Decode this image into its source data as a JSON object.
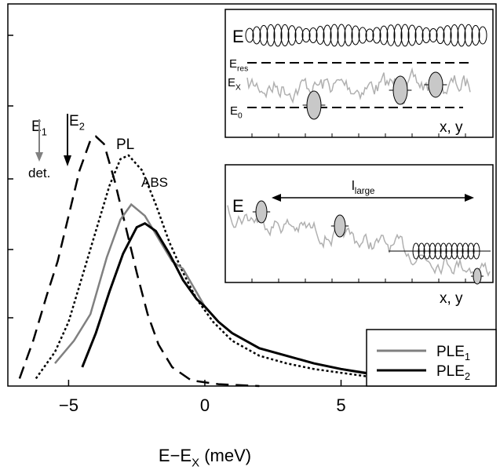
{
  "chart_data": {
    "type": "line",
    "xlabel": {
      "text": "E−E",
      "sub": "X",
      "after": " (meV)"
    },
    "xlim": [
      -7.23,
      10.69
    ],
    "ylim": [
      0,
      1
    ],
    "xticks": [
      {
        "value": -5,
        "label": "−5"
      },
      0,
      5
    ],
    "series": [
      {
        "name": "PL",
        "color": "#000000",
        "dash": "dashed",
        "x": [
          -6.8,
          -6.3,
          -5.8,
          -5.4,
          -5.0,
          -4.6,
          -4.2,
          -4.0,
          -3.7,
          -3.3,
          -2.9,
          -2.5,
          -2.1,
          -1.7,
          -1.2,
          -0.5,
          0.5,
          2
        ],
        "values": [
          0.02,
          0.12,
          0.24,
          0.33,
          0.45,
          0.57,
          0.65,
          0.66,
          0.64,
          0.54,
          0.42,
          0.3,
          0.19,
          0.11,
          0.05,
          0.015,
          0.005,
          0
        ]
      },
      {
        "name": "ABS",
        "color": "#000000",
        "dash": "dotted",
        "x": [
          -6.2,
          -5.5,
          -5,
          -4.5,
          -4,
          -3.5,
          -3.1,
          -2.8,
          -2.3,
          -1.8,
          -1.3,
          -0.8,
          -0.3,
          0.3,
          1,
          2,
          3,
          4,
          5,
          6
        ],
        "values": [
          0.02,
          0.09,
          0.17,
          0.29,
          0.41,
          0.53,
          0.6,
          0.61,
          0.57,
          0.48,
          0.38,
          0.3,
          0.23,
          0.17,
          0.12,
          0.08,
          0.06,
          0.045,
          0.035,
          0.025
        ]
      },
      {
        "name": "PLE",
        "name_sub": "1",
        "color": "#808080",
        "dash": "solid",
        "x": [
          -5.5,
          -4.8,
          -4.2,
          -3.6,
          -3.1,
          -2.7,
          -2.2,
          -1.7,
          -1.2,
          -0.8,
          -0.4,
          0,
          0.5,
          1,
          2,
          3,
          4,
          5,
          6,
          7,
          8
        ],
        "values": [
          0.06,
          0.12,
          0.19,
          0.34,
          0.44,
          0.48,
          0.45,
          0.39,
          0.33,
          0.31,
          0.26,
          0.21,
          0.17,
          0.14,
          0.1,
          0.08,
          0.06,
          0.045,
          0.035,
          0.025,
          0.015
        ]
      },
      {
        "name": "PLE",
        "name_sub": "2",
        "color": "#000000",
        "dash": "solid",
        "x": [
          -4.5,
          -4,
          -3.5,
          -3,
          -2.5,
          -2.2,
          -1.8,
          -1.3,
          -0.8,
          -0.3,
          0,
          0.5,
          1,
          2,
          3,
          4,
          5,
          6
        ],
        "values": [
          0.05,
          0.14,
          0.25,
          0.35,
          0.42,
          0.43,
          0.41,
          0.35,
          0.28,
          0.23,
          0.21,
          0.17,
          0.14,
          0.1,
          0.08,
          0.06,
          0.045,
          0.033
        ]
      }
    ],
    "legend_series": [
      2,
      3
    ],
    "annotations": [
      {
        "text": "PL"
      },
      {
        "text": "ABS"
      },
      {
        "text": "E",
        "sub": "1"
      },
      {
        "text": "E",
        "sub": "2"
      },
      {
        "text": "det."
      }
    ],
    "insets": [
      {
        "labels": [
          {
            "text": "E"
          },
          {
            "text": "E",
            "sub": "res"
          },
          {
            "text": "E",
            "sub": "X"
          },
          {
            "text": "E",
            "sub": "0"
          },
          {
            "text": "x, y"
          }
        ]
      },
      {
        "labels": [
          {
            "text": "E"
          },
          {
            "text": "l",
            "sub": "large"
          },
          {
            "text": "x, y"
          }
        ]
      }
    ]
  }
}
